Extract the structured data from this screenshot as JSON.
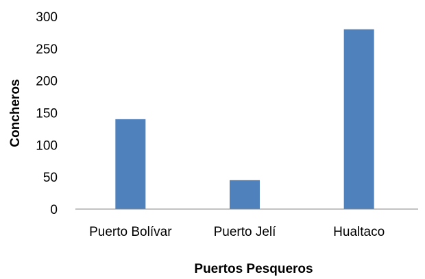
{
  "chart_data": {
    "type": "bar",
    "categories": [
      "Puerto Bolívar",
      "Puerto Jelí",
      "Hualtaco"
    ],
    "values": [
      140,
      45,
      280
    ],
    "title": "",
    "xlabel": "Puertos Pesqueros",
    "ylabel": "Concheros",
    "ylim": [
      0,
      300
    ],
    "yticks": [
      0,
      50,
      100,
      150,
      200,
      250,
      300
    ],
    "grid": false,
    "legend": "none",
    "bar_color": "#4f81bd",
    "axis_color": "#868686"
  }
}
